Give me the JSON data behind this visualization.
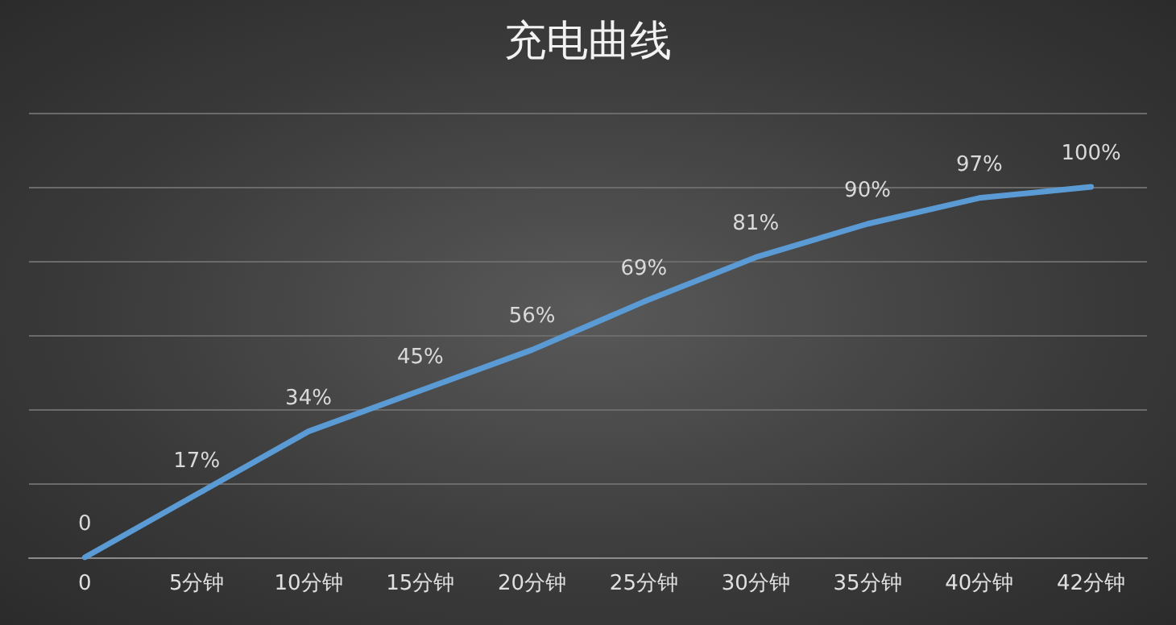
{
  "chart_data": {
    "type": "line",
    "title": "充电曲线",
    "categories": [
      "0",
      "5分钟",
      "10分钟",
      "15分钟",
      "20分钟",
      "25分钟",
      "30分钟",
      "35分钟",
      "40分钟",
      "42分钟"
    ],
    "series": [
      {
        "color": "#5b9bd5",
        "values": [
          0,
          17,
          34,
          45,
          56,
          69,
          81,
          90,
          97,
          100
        ],
        "value_labels": [
          "0",
          "17%",
          "34%",
          "45%",
          "56%",
          "69%",
          "81%",
          "90%",
          "97%",
          "100%"
        ]
      }
    ],
    "ylim": [
      0,
      120
    ],
    "yticks": [
      {
        "value": 0,
        "label": null
      },
      {
        "value": 20,
        "label": null
      },
      {
        "value": 40,
        "label": null
      },
      {
        "value": 60,
        "label": null
      },
      {
        "value": 80,
        "label": null
      },
      {
        "value": 100,
        "label": null
      },
      {
        "value": 120,
        "label": null
      }
    ],
    "grid": "y",
    "tick_labels": "x",
    "marker": "none",
    "line_style": "solid"
  }
}
